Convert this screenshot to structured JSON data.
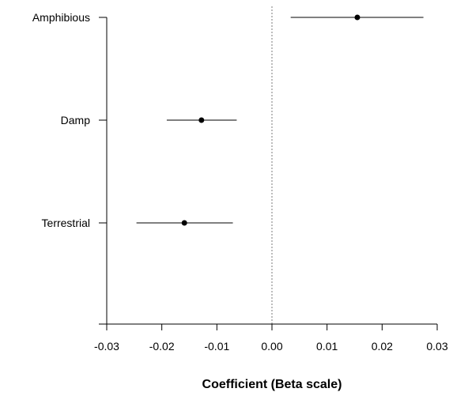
{
  "chart_data": {
    "type": "scatter",
    "subtype": "coefficient-plot",
    "title": "",
    "xlabel": "Coefficient (Beta scale)",
    "ylabel": "",
    "xlim": [
      -0.03,
      0.03
    ],
    "x_ticks": [
      -0.03,
      -0.02,
      -0.01,
      0.0,
      0.01,
      0.02,
      0.03
    ],
    "x_tick_labels": [
      "-0.03",
      "-0.02",
      "-0.01",
      "0.00",
      "0.01",
      "0.02",
      "0.03"
    ],
    "reference_line": {
      "x": 0.0,
      "style": "dotted",
      "color": "#999999"
    },
    "categories": [
      "Amphibious",
      "Damp",
      "Terrestrial"
    ],
    "estimates": [
      0.0155,
      -0.0128,
      -0.0159
    ],
    "ci_lower": [
      0.0034,
      -0.0191,
      -0.0246
    ],
    "ci_upper": [
      0.0275,
      -0.0064,
      -0.0071
    ],
    "grid": false,
    "legend": "none",
    "point_color": "#000000",
    "line_color": "#000000"
  }
}
